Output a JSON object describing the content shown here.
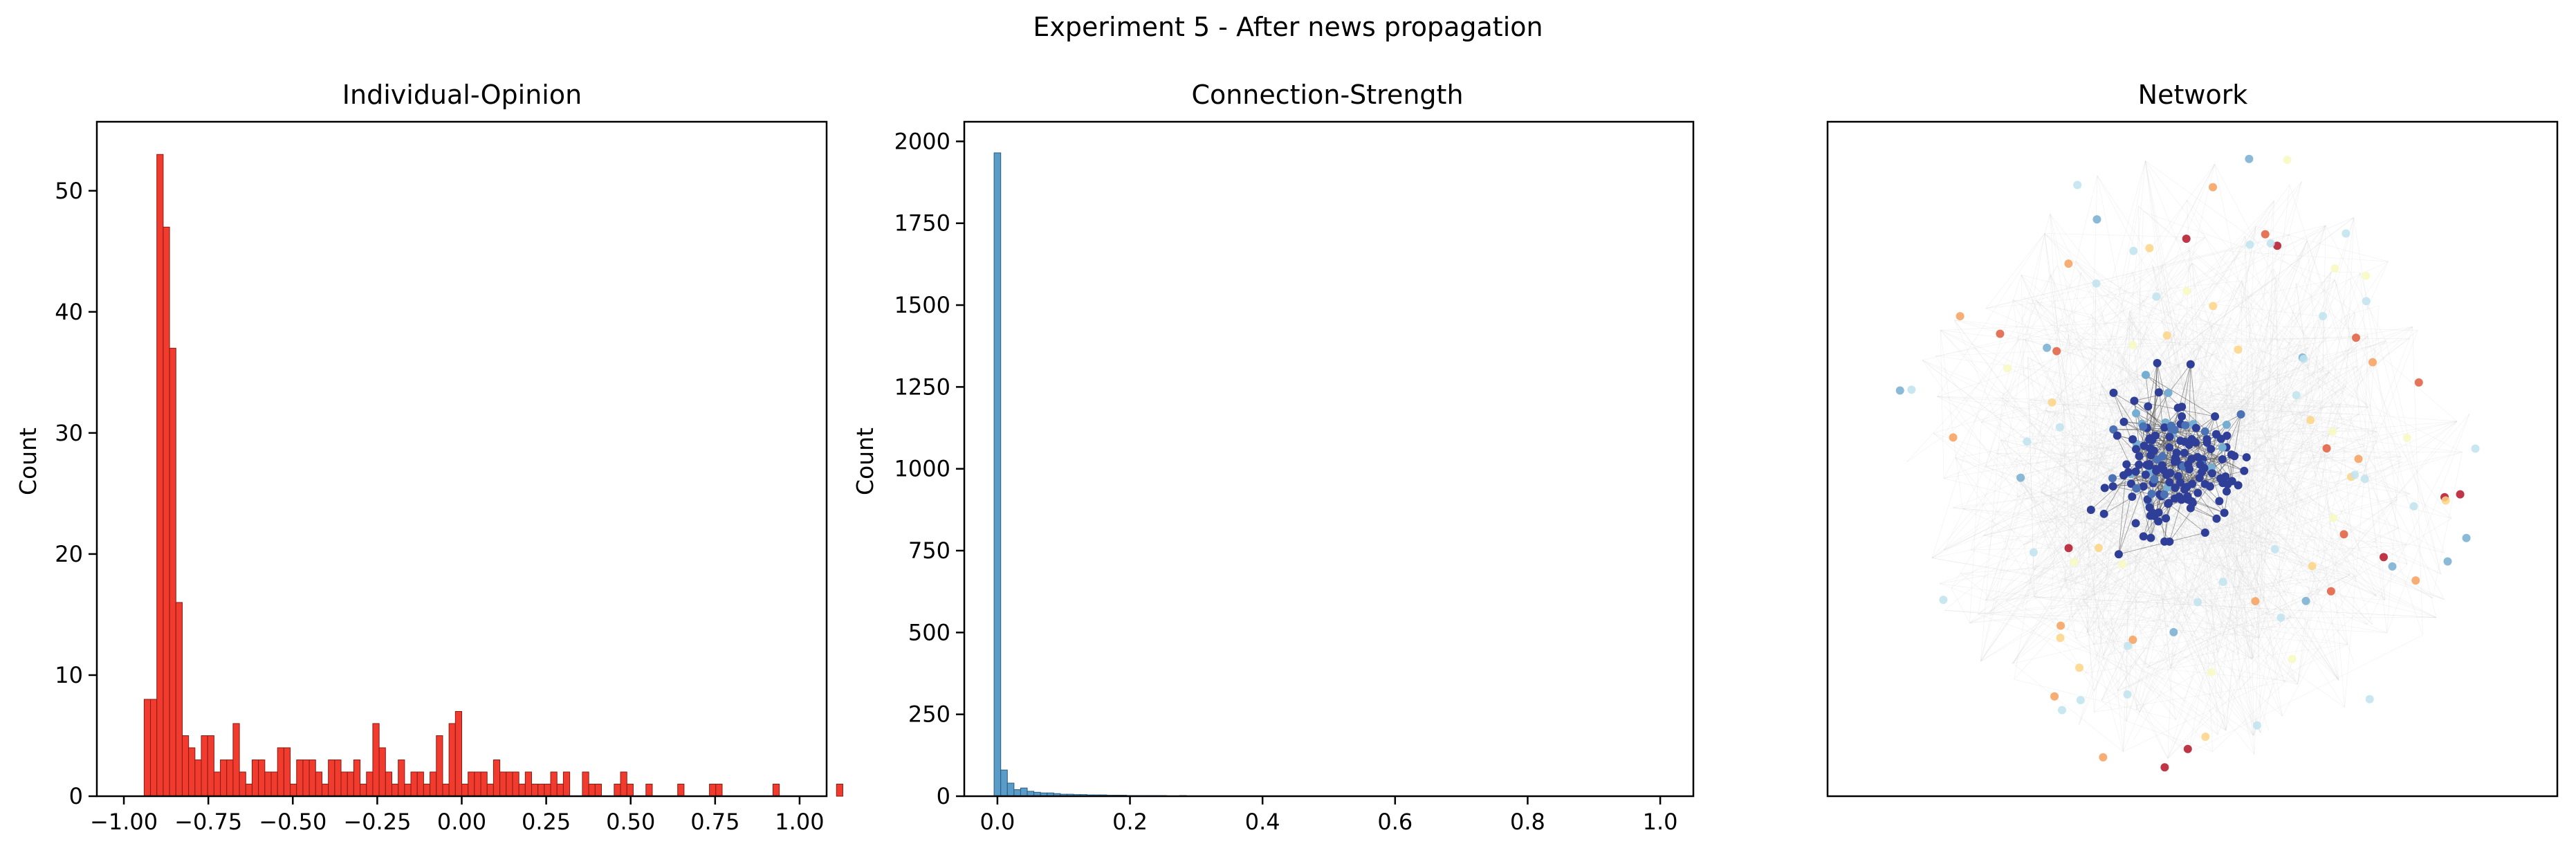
{
  "title": "Experiment 5 - After news propagation",
  "chart_data": [
    {
      "type": "bar",
      "title": "Individual-Opinion",
      "xlabel": "",
      "ylabel": "Count",
      "xlim": [
        -1.08,
        1.08
      ],
      "ylim": [
        0,
        55.7
      ],
      "xticks": [
        -1.0,
        -0.75,
        -0.5,
        -0.25,
        0.0,
        0.25,
        0.5,
        0.75,
        1.0
      ],
      "xtick_labels": [
        "−1.00",
        "−0.75",
        "−0.50",
        "−0.25",
        "0.00",
        "0.25",
        "0.50",
        "0.75",
        "1.00"
      ],
      "yticks": [
        0,
        10,
        20,
        30,
        40,
        50
      ],
      "ytick_labels": [
        "0",
        "10",
        "20",
        "30",
        "40",
        "50"
      ],
      "bin_start": -0.94,
      "bin_width": 0.0188,
      "counts": [
        8,
        8,
        53,
        47,
        37,
        16,
        5,
        4,
        3,
        5,
        5,
        2,
        3,
        3,
        6,
        2,
        1,
        3,
        3,
        2,
        2,
        4,
        4,
        1,
        3,
        3,
        3,
        2,
        1,
        3,
        3,
        2,
        2,
        3,
        1,
        2,
        6,
        4,
        2,
        1,
        3,
        1,
        2,
        2,
        1,
        2,
        5,
        1,
        6,
        7,
        1,
        2,
        2,
        2,
        1,
        3,
        2,
        2,
        2,
        1,
        2,
        1,
        1,
        1,
        2,
        1,
        2,
        0,
        0,
        2,
        1,
        1,
        0,
        0,
        1,
        2,
        1,
        0,
        0,
        1,
        0,
        0,
        0,
        0,
        1,
        0,
        0,
        0,
        0,
        1,
        1,
        0,
        0,
        0,
        0,
        0,
        0,
        0,
        0,
        1,
        0,
        0,
        0,
        0,
        0,
        0,
        0,
        0,
        0,
        1
      ],
      "grid": false,
      "colors": {
        "bar": "#f03b2e",
        "edge": "#8a1a12"
      }
    },
    {
      "type": "bar",
      "title": "Connection-Strength",
      "xlabel": "",
      "ylabel": "Count",
      "xlim": [
        -0.05,
        1.05
      ],
      "ylim": [
        0,
        2060
      ],
      "xticks": [
        0.0,
        0.2,
        0.4,
        0.6,
        0.8,
        1.0
      ],
      "xtick_labels": [
        "0.0",
        "0.2",
        "0.4",
        "0.6",
        "0.8",
        "1.0"
      ],
      "yticks": [
        0,
        250,
        500,
        750,
        1000,
        1250,
        1500,
        1750,
        2000
      ],
      "ytick_labels": [
        "0",
        "250",
        "500",
        "750",
        "1000",
        "1250",
        "1500",
        "1750",
        "2000"
      ],
      "bin_start": -0.005,
      "bin_width": 0.01,
      "counts": [
        1965,
        80,
        40,
        20,
        25,
        15,
        12,
        10,
        10,
        8,
        6,
        6,
        5,
        5,
        4,
        4,
        4,
        3,
        3,
        3,
        2,
        2,
        2,
        2,
        2,
        2,
        1,
        1,
        2,
        1,
        1,
        1,
        1,
        1,
        1,
        1,
        1,
        1,
        1,
        1,
        0,
        1,
        0,
        1,
        0,
        0,
        1,
        0,
        0,
        0,
        0,
        0,
        0,
        0,
        0,
        0,
        0,
        0,
        0,
        0,
        0,
        0,
        0,
        0,
        0,
        0,
        0,
        0,
        0,
        0,
        0,
        0,
        0,
        0,
        0,
        0,
        0,
        0,
        0,
        0,
        0,
        0,
        0,
        0,
        0,
        0,
        0,
        0,
        0,
        0,
        0,
        0,
        0,
        0,
        0,
        0,
        0,
        0,
        0,
        0,
        1
      ],
      "grid": false,
      "colors": {
        "bar": "#5a9cc9",
        "edge": "#2b5b7c"
      }
    },
    {
      "type": "scatter",
      "title": "Network",
      "xlabel": "",
      "ylabel": "",
      "axes_ticks": false,
      "colors": {
        "node_scale": [
          "#2f3f98",
          "#4a72b4",
          "#75aed1",
          "#bfe3ee",
          "#f7f9bf",
          "#fdd585",
          "#f69f5a",
          "#e05c3c",
          "#b41326"
        ],
        "edge": "#555555",
        "background_edge": "#d4d4d4"
      }
    }
  ]
}
